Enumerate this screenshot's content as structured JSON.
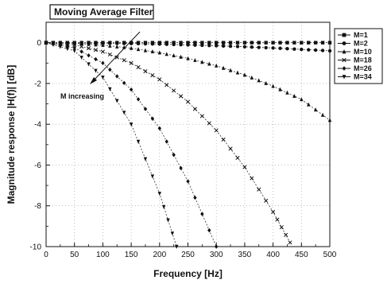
{
  "chart_data": {
    "type": "line",
    "title": "Moving Average Filter",
    "xlabel": "Frequency [Hz]",
    "ylabel": "Magnitude response  |H(f)|  [dB]",
    "xlim": [
      0,
      500
    ],
    "ylim": [
      -10,
      1
    ],
    "x_ticks": [
      0,
      50,
      100,
      150,
      200,
      250,
      300,
      350,
      400,
      450,
      500
    ],
    "y_ticks": [
      0,
      -2,
      -4,
      -6,
      -8,
      -10
    ],
    "grid": true,
    "legend_position": "top-right",
    "annotation": "M increasing",
    "series": [
      {
        "name": "M=1",
        "marker": "square",
        "x": [
          0,
          50,
          100,
          150,
          200,
          250,
          300,
          350,
          400,
          450,
          500
        ],
        "y": [
          0,
          0,
          0,
          0,
          0,
          0,
          0,
          0,
          0,
          0,
          0
        ]
      },
      {
        "name": "M=2",
        "marker": "circle",
        "x": [
          0,
          50,
          100,
          150,
          200,
          250,
          300,
          350,
          400,
          450,
          500
        ],
        "y": [
          0,
          -0.01,
          -0.02,
          -0.04,
          -0.07,
          -0.11,
          -0.15,
          -0.2,
          -0.26,
          -0.33,
          -0.4
        ]
      },
      {
        "name": "M=10",
        "marker": "triangle-up",
        "x": [
          0,
          50,
          100,
          150,
          200,
          250,
          300,
          350,
          400,
          450,
          500
        ],
        "y": [
          0,
          -0.03,
          -0.12,
          -0.27,
          -0.49,
          -0.77,
          -1.13,
          -1.58,
          -2.13,
          -2.78,
          -3.8
        ]
      },
      {
        "name": "M=18",
        "marker": "cross",
        "x": [
          0,
          50,
          100,
          150,
          200,
          250,
          300,
          350,
          400,
          430
        ],
        "y": [
          0,
          -0.11,
          -0.44,
          -1.0,
          -1.8,
          -2.9,
          -4.3,
          -6.1,
          -8.3,
          -9.8
        ]
      },
      {
        "name": "M=26",
        "marker": "diamond",
        "x": [
          0,
          50,
          100,
          150,
          200,
          250,
          300
        ],
        "y": [
          0,
          -0.25,
          -1.0,
          -2.3,
          -4.2,
          -6.8,
          -10.0
        ]
      },
      {
        "name": "M=34",
        "marker": "triangle-down",
        "x": [
          0,
          50,
          100,
          150,
          200,
          230
        ],
        "y": [
          0,
          -0.4,
          -1.7,
          -4.0,
          -7.4,
          -10.0
        ]
      }
    ]
  }
}
